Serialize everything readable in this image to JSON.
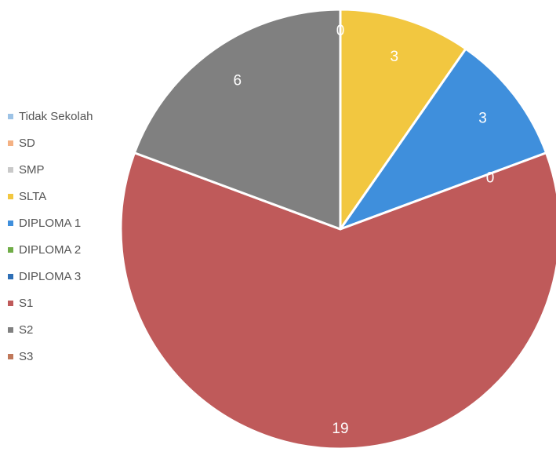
{
  "chart_data": {
    "type": "pie",
    "title": "",
    "legend_position": "left",
    "categories": [
      "Tidak Sekolah",
      "SD",
      "SMP",
      "SLTA",
      "DIPLOMA 1",
      "DIPLOMA 2",
      "DIPLOMA 3",
      "S1",
      "S2",
      "S3"
    ],
    "values": [
      0,
      0,
      0,
      3,
      3,
      0,
      0,
      19,
      6,
      0
    ],
    "data_labels": [
      "0",
      "",
      "",
      "3",
      "3",
      "",
      "0",
      "19",
      "6",
      ""
    ],
    "colors": [
      "#9dc3e6",
      "#f4b183",
      "#c9c9c9",
      "#f2c740",
      "#3f8fdc",
      "#70ad47",
      "#2e6fb6",
      "#bf5a5a",
      "#808080",
      "#c0785a"
    ]
  },
  "legend": [
    {
      "label": "Tidak Sekolah",
      "color": "#9dc3e6"
    },
    {
      "label": "SD",
      "color": "#f4b183"
    },
    {
      "label": "SMP",
      "color": "#c9c9c9"
    },
    {
      "label": "SLTA",
      "color": "#f2c740"
    },
    {
      "label": "DIPLOMA 1",
      "color": "#3f8fdc"
    },
    {
      "label": "DIPLOMA 2",
      "color": "#70ad47"
    },
    {
      "label": "DIPLOMA 3",
      "color": "#2e6fb6"
    },
    {
      "label": "S1",
      "color": "#bf5a5a"
    },
    {
      "label": "S2",
      "color": "#808080"
    },
    {
      "label": "S3",
      "color": "#c0785a"
    }
  ]
}
